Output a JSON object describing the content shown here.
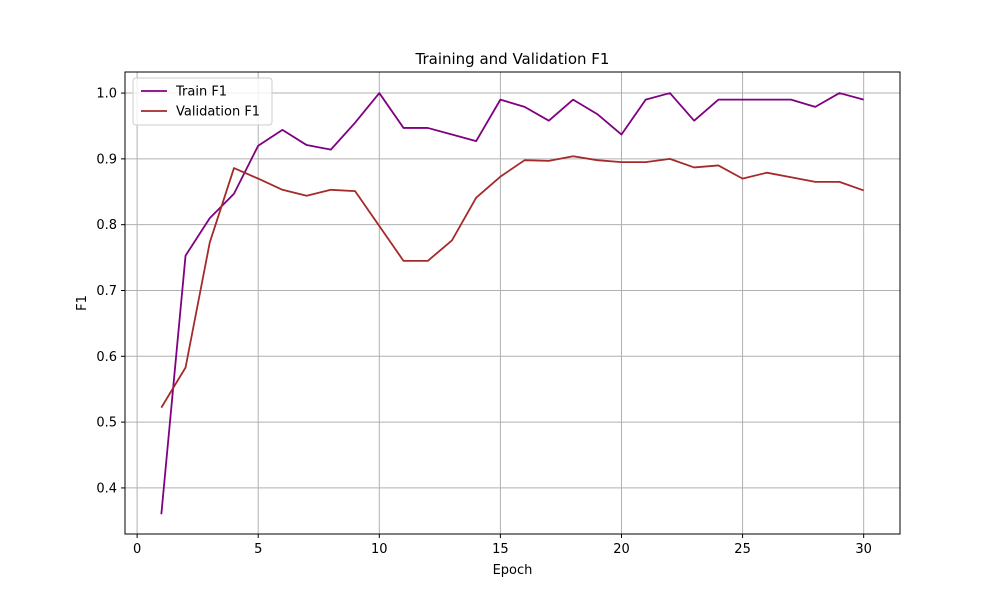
{
  "chart_data": {
    "type": "line",
    "title": "Training and Validation F1",
    "xlabel": "Epoch",
    "ylabel": "F1",
    "xlim": [
      -0.5,
      31.5
    ],
    "ylim": [
      0.33,
      1.032
    ],
    "xticks": [
      0,
      5,
      10,
      15,
      20,
      25,
      30
    ],
    "yticks": [
      0.4,
      0.5,
      0.6,
      0.7,
      0.8,
      0.9,
      1.0
    ],
    "xtick_labels": [
      "0",
      "5",
      "10",
      "15",
      "20",
      "25",
      "30"
    ],
    "ytick_labels": [
      "0.4",
      "0.5",
      "0.6",
      "0.7",
      "0.8",
      "0.9",
      "1.0"
    ],
    "grid": true,
    "legend": "top-left",
    "x": [
      1,
      2,
      3,
      4,
      5,
      6,
      7,
      8,
      9,
      10,
      11,
      12,
      13,
      14,
      15,
      16,
      17,
      18,
      19,
      20,
      21,
      22,
      23,
      24,
      25,
      26,
      27,
      28,
      29,
      30
    ],
    "series": [
      {
        "name": "Train F1",
        "color": "#800080",
        "values": [
          0.36,
          0.753,
          0.81,
          0.847,
          0.92,
          0.944,
          0.921,
          0.914,
          0.955,
          1.0,
          0.947,
          0.947,
          0.937,
          0.927,
          0.99,
          0.979,
          0.958,
          0.99,
          0.968,
          0.937,
          0.99,
          1.0,
          0.958,
          0.99,
          0.99,
          0.99,
          0.99,
          0.979,
          1.0,
          0.99
        ]
      },
      {
        "name": "Validation F1",
        "color": "#a52a2a",
        "values": [
          0.522,
          0.583,
          0.773,
          0.886,
          0.87,
          0.853,
          0.844,
          0.853,
          0.851,
          0.798,
          0.745,
          0.745,
          0.776,
          0.841,
          0.873,
          0.898,
          0.897,
          0.904,
          0.898,
          0.895,
          0.895,
          0.9,
          0.887,
          0.89,
          0.87,
          0.879,
          0.872,
          0.865,
          0.865,
          0.852
        ]
      }
    ]
  }
}
